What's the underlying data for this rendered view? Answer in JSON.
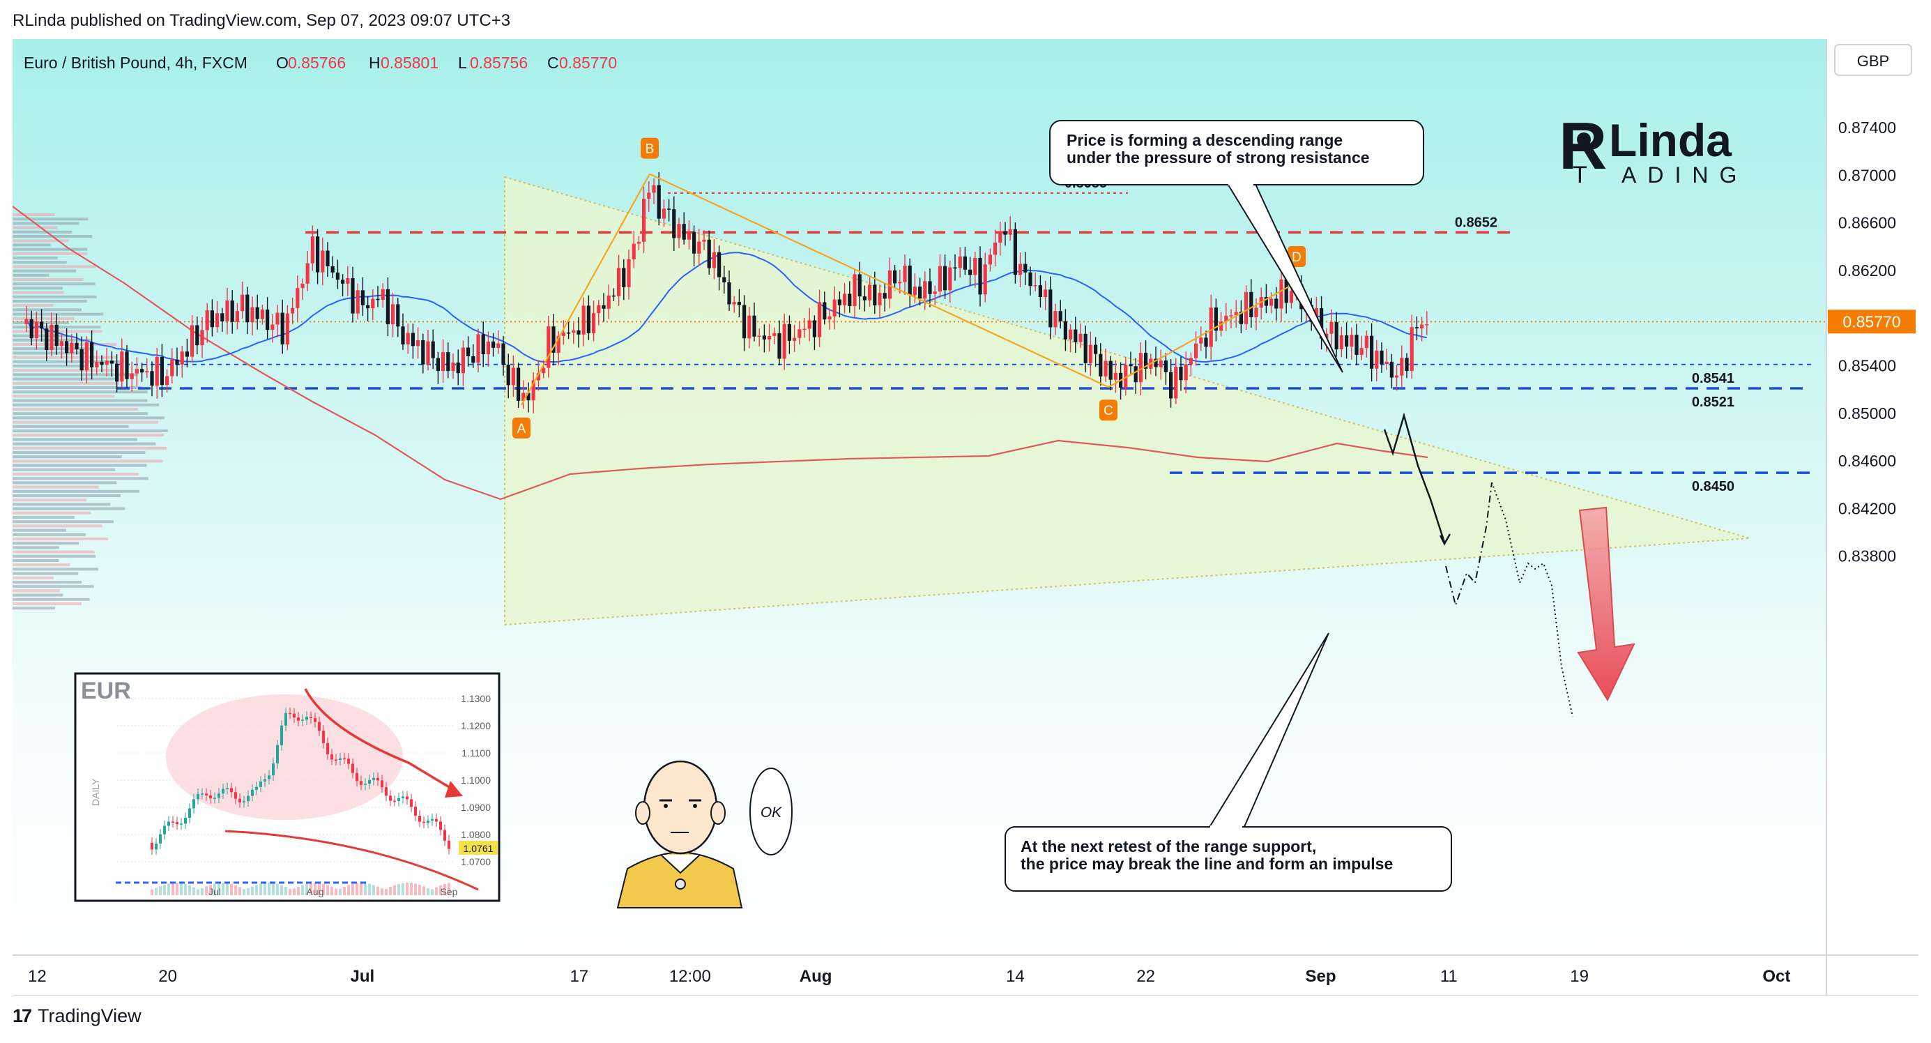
{
  "publisher_line": "RLinda published on TradingView.com, Sep 07, 2023 09:07 UTC+3",
  "footer": {
    "brand": "TradingView",
    "brand_mark": "17"
  },
  "header": {
    "symbol": "Euro / British Pound, 4h, FXCM",
    "ohlc": [
      {
        "key": "O",
        "value": "0.85766"
      },
      {
        "key": "H",
        "value": "0.85801"
      },
      {
        "key": "L",
        "value": "0.85756"
      },
      {
        "key": "C",
        "value": "0.85770"
      }
    ],
    "currency": "GBP"
  },
  "logo": {
    "line1": "Linda",
    "line2": "ADING",
    "letter_r": "R",
    "letter_t": "T"
  },
  "colors": {
    "bull": "#f23645",
    "bear": "#131722",
    "level_red": "#e53935",
    "level_blue": "#1e4fd9",
    "ma_red": "#e05a5a",
    "ma_blue": "#2962ff",
    "pattern": "#f5a623",
    "triangle_fill": "#e8f7d2",
    "price_tag": "#f57c00",
    "bg_top": "#a8efea",
    "bg_bottom": "#ffffff"
  },
  "annotations": {
    "top": "Price is forming a descending range\nunder the pressure of strong resistance",
    "bottom": "At the next retest of the range support,\nthe price may break the line and form an impulse",
    "ok": "OK"
  },
  "inset": {
    "title": "EUR",
    "label": "DAILY",
    "y_ticks": [
      "1.1300",
      "1.1200",
      "1.1100",
      "1.1000",
      "1.0900",
      "1.0800",
      "1.0700"
    ],
    "last_price": "1.0761",
    "x_ticks": [
      "Jul",
      "Aug",
      "Sep"
    ]
  },
  "chart_data": {
    "type": "candlestick",
    "title": "Euro / British Pound, 4h, FXCM",
    "y_ticks": [
      0.874,
      0.87,
      0.866,
      0.862,
      0.858,
      0.854,
      0.85,
      0.846,
      0.842,
      0.838
    ],
    "y_tick_labels": [
      "0.87400",
      "0.87000",
      "0.86600",
      "0.86200",
      "0.85800",
      "0.85400",
      "0.85000",
      "0.84600",
      "0.84200",
      "0.83800"
    ],
    "ylim": [
      0.8363,
      0.877
    ],
    "x_tick_labels": [
      "12",
      "20",
      "Jul",
      "17",
      "12:00",
      "Aug",
      "14",
      "22",
      "Sep",
      "11",
      "19",
      "Oct"
    ],
    "current_price": {
      "label": "0.85770",
      "value": 0.8577
    },
    "levels": [
      {
        "label": "0.8685",
        "value": 0.8685,
        "style": "dotted-red"
      },
      {
        "label": "0.8652",
        "value": 0.8652,
        "style": "dashed-red"
      },
      {
        "label": "0.8541",
        "value": 0.8541,
        "style": "dotted-blue"
      },
      {
        "label": "0.8521",
        "value": 0.8521,
        "style": "dashed-blue"
      },
      {
        "label": "0.8450",
        "value": 0.845,
        "style": "dashed-blue"
      }
    ],
    "pattern_points": [
      {
        "label": "A",
        "price": 0.8507
      },
      {
        "label": "B",
        "price": 0.8701
      },
      {
        "label": "C",
        "price": 0.8522
      },
      {
        "label": "D",
        "price": 0.861
      }
    ]
  }
}
